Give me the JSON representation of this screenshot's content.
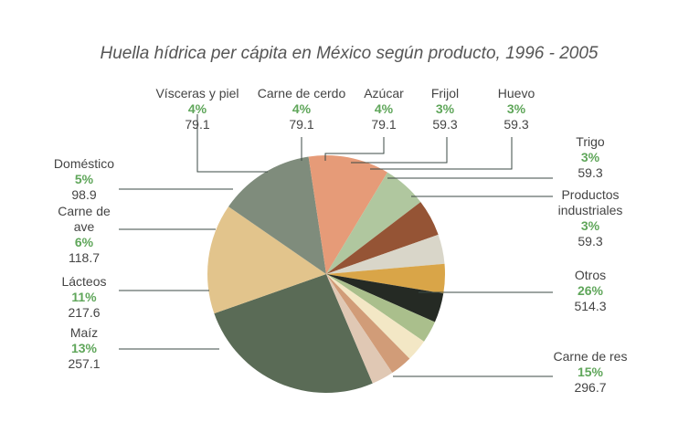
{
  "chart_data": {
    "type": "pie",
    "title": "Huella hídrica per cápita en México según producto, 1996 - 2005",
    "slices": [
      {
        "name": "Otros",
        "percent": "26%",
        "value": "514.3",
        "v": 514.3,
        "color": "#5a6b56"
      },
      {
        "name": "Carne de res",
        "percent": "15%",
        "value": "296.7",
        "v": 296.7,
        "color": "#e2c48c"
      },
      {
        "name": "Maíz",
        "percent": "13%",
        "value": "257.1",
        "v": 257.1,
        "color": "#7f8c7c"
      },
      {
        "name": "Lácteos",
        "percent": "11%",
        "value": "217.6",
        "v": 217.6,
        "color": "#e69b78"
      },
      {
        "name": "Carne de ave",
        "name_lines": [
          "Carne de",
          "ave"
        ],
        "percent": "6%",
        "value": "118.7",
        "v": 118.7,
        "color": "#b0c79f"
      },
      {
        "name": "Doméstico",
        "percent": "5%",
        "value": "98.9",
        "v": 98.9,
        "color": "#955435"
      },
      {
        "name": "Vísceras y piel",
        "percent": "4%",
        "value": "79.1",
        "v": 79.1,
        "color": "#d9d6c9"
      },
      {
        "name": "Carne de cerdo",
        "percent": "4%",
        "value": "79.1",
        "v": 79.1,
        "color": "#d9a548"
      },
      {
        "name": "Azúcar",
        "percent": "4%",
        "value": "79.1",
        "v": 79.1,
        "color": "#252a24"
      },
      {
        "name": "Frijol",
        "percent": "3%",
        "value": "59.3",
        "v": 59.3,
        "color": "#aabf8c"
      },
      {
        "name": "Huevo",
        "percent": "3%",
        "value": "59.3",
        "v": 59.3,
        "color": "#f3e7c5"
      },
      {
        "name": "Trigo",
        "percent": "3%",
        "value": "59.3",
        "v": 59.3,
        "color": "#d19c78"
      },
      {
        "name": "Productos industriales",
        "name_lines": [
          "Productos",
          "industriales"
        ],
        "percent": "3%",
        "value": "59.3",
        "v": 59.3,
        "color": "#e0c8b4"
      }
    ]
  }
}
